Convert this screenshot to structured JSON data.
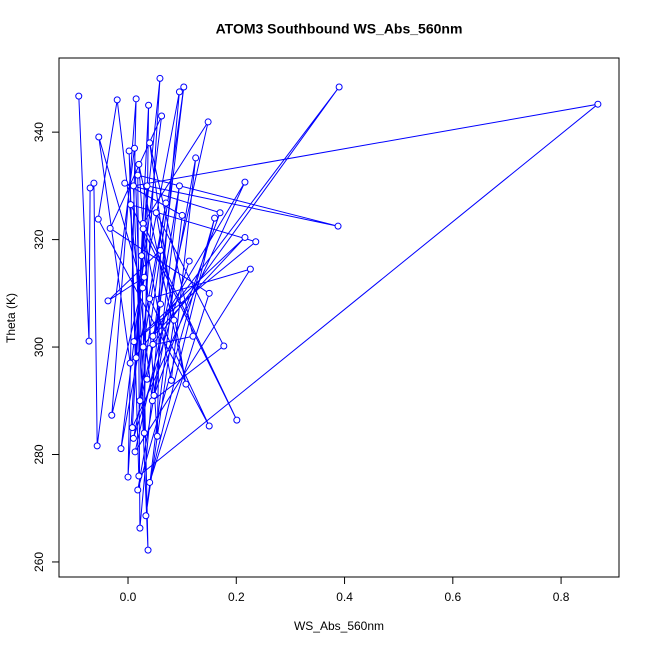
{
  "chart_data": {
    "type": "line",
    "title": "ATOM3 Southbound WS_Abs_560nm",
    "x_label": "WS_Abs_560nm",
    "y_label": "Theta (K)",
    "color": "#0000ff",
    "xlim": [
      -0.1275,
      0.907
    ],
    "ylim": [
      257.2,
      353.8
    ],
    "xticks": [
      {
        "value": 0,
        "label": "0.0"
      },
      0.2,
      0.4,
      0.6,
      0.8
    ],
    "yticks": [
      260,
      280,
      300,
      320,
      340
    ],
    "x": [
      -0.091,
      -0.072,
      -0.07,
      -0.063,
      -0.057,
      0.012,
      0.03,
      0.038,
      0.015,
      0.002,
      0.02,
      0.868,
      0.01,
      0.037,
      0.025,
      0.059,
      0.022,
      0.103,
      0.046,
      0.39,
      0.004,
      -0.054,
      0.027,
      0.095,
      0.022,
      0.018,
      0.388,
      0.035,
      0.008,
      0.216,
      0.046,
      0.216,
      0.011,
      0.236,
      0.005,
      0.201,
      0.028,
      0.148,
      0.013,
      0.226,
      0.04,
      0.15,
      -0.055,
      -0.02,
      0.045,
      0.177,
      0.052,
      0.107,
      0.02,
      0.054,
      0.06,
      -0.037,
      0.03,
      -0.03,
      0.015,
      0.0,
      0.028,
      0.08,
      0.125,
      0.018,
      0.16,
      0.04,
      0.15,
      -0.033,
      0.062,
      -0.013,
      0.07,
      0.028,
      0.12,
      0.04,
      0.085,
      0.033,
      0.1,
      -0.006,
      0.17,
      0.048,
      0.095,
      0.035,
      0.06,
      0.01,
      0.113
    ],
    "values": [
      346.7,
      301.1,
      329.6,
      330.5,
      281.6,
      337.0,
      284.0,
      345.0,
      298.0,
      336.5,
      276.0,
      345.2,
      330.0,
      262.2,
      317.0,
      350.0,
      290.0,
      348.4,
      300.5,
      348.4,
      297.0,
      339.1,
      311.0,
      347.5,
      266.3,
      332.0,
      322.5,
      330.0,
      285.0,
      330.7,
      302.0,
      320.4,
      301.0,
      319.6,
      326.5,
      286.4,
      323.0,
      341.9,
      280.5,
      314.5,
      309.0,
      285.3,
      323.8,
      346.0,
      290.0,
      300.2,
      325.0,
      293.1,
      334.0,
      283.4,
      318.0,
      308.6,
      313.0,
      287.3,
      346.2,
      275.8,
      322.0,
      293.8,
      335.2,
      273.4,
      324.0,
      274.8,
      310.0,
      322.1,
      343.0,
      281.1,
      326.8,
      300.0,
      302.0,
      338.0,
      305.0,
      268.6,
      324.5,
      330.5,
      325.0,
      291.0,
      330.0,
      294.0,
      308.0,
      283.0,
      316.0
    ]
  }
}
